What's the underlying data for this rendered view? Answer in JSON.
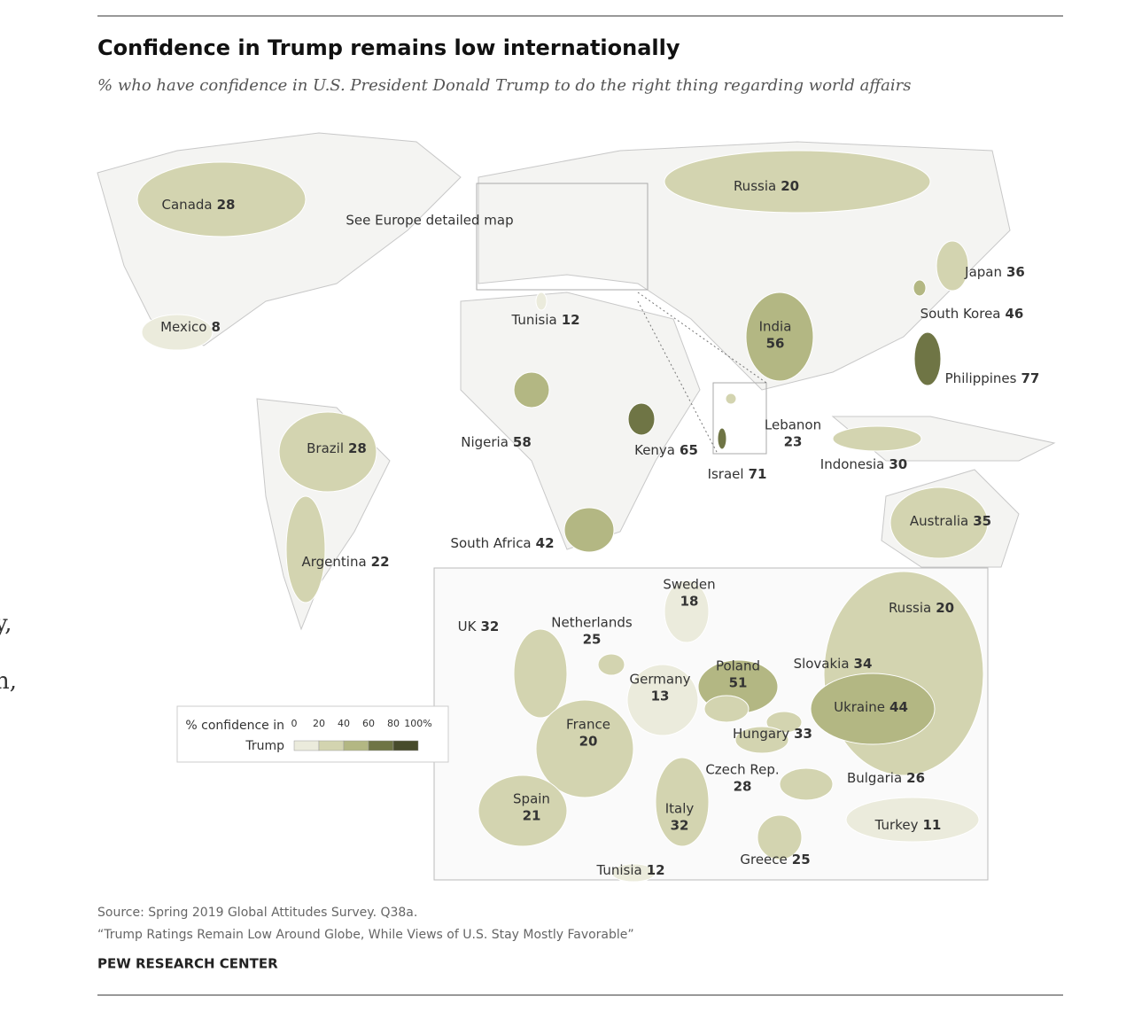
{
  "header": {
    "title": "Confidence in Trump remains low internationally",
    "subtitle": "% who have confidence in U.S. President Donald Trump to do the right thing regarding world affairs"
  },
  "world": [
    {
      "name": "Canada",
      "value": 28
    },
    {
      "name": "Mexico",
      "value": 8
    },
    {
      "name": "Brazil",
      "value": 28
    },
    {
      "name": "Argentina",
      "value": 22
    },
    {
      "name": "Russia",
      "value": 20
    },
    {
      "name": "Japan",
      "value": 36
    },
    {
      "name": "South Korea",
      "value": 46
    },
    {
      "name": "India",
      "value": 56
    },
    {
      "name": "Philippines",
      "value": 77
    },
    {
      "name": "Indonesia",
      "value": 30
    },
    {
      "name": "Australia",
      "value": 35
    },
    {
      "name": "Tunisia",
      "value": 12
    },
    {
      "name": "Nigeria",
      "value": 58
    },
    {
      "name": "Kenya",
      "value": 65
    },
    {
      "name": "Israel",
      "value": 71
    },
    {
      "name": "Lebanon",
      "value": 23
    },
    {
      "name": "South Africa",
      "value": 42
    }
  ],
  "europe_note": "See Europe detailed map",
  "europe": [
    {
      "name": "Sweden",
      "value": 18
    },
    {
      "name": "Russia",
      "value": 20
    },
    {
      "name": "UK",
      "value": 32
    },
    {
      "name": "Netherlands",
      "value": 25
    },
    {
      "name": "Germany",
      "value": 13
    },
    {
      "name": "Poland",
      "value": 51
    },
    {
      "name": "Slovakia",
      "value": 34
    },
    {
      "name": "Ukraine",
      "value": 44
    },
    {
      "name": "France",
      "value": 20
    },
    {
      "name": "Hungary",
      "value": 33
    },
    {
      "name": "Czech Rep.",
      "value": 28
    },
    {
      "name": "Bulgaria",
      "value": 26
    },
    {
      "name": "Spain",
      "value": 21
    },
    {
      "name": "Italy",
      "value": 32
    },
    {
      "name": "Turkey",
      "value": 11
    },
    {
      "name": "Greece",
      "value": 25
    },
    {
      "name": "Tunisia",
      "value": 12
    }
  ],
  "legend": {
    "title": "% confidence in Trump",
    "ticks": [
      0,
      20,
      40,
      60,
      80,
      {
        "value": 100,
        "label": "100%"
      }
    ],
    "colors": [
      "#ebebdc",
      "#d3d4b0",
      "#b3b783",
      "#6f7545",
      "#474b2b"
    ]
  },
  "footer": {
    "source": "Source: Spring 2019 Global Attitudes Survey. Q38a.",
    "report": "“Trump Ratings Remain Low Around Globe, While Views of U.S. Stay Mostly Favorable”",
    "org": "PEW RESEARCH CENTER"
  },
  "side_fragments": [
    "y,",
    "n,"
  ]
}
